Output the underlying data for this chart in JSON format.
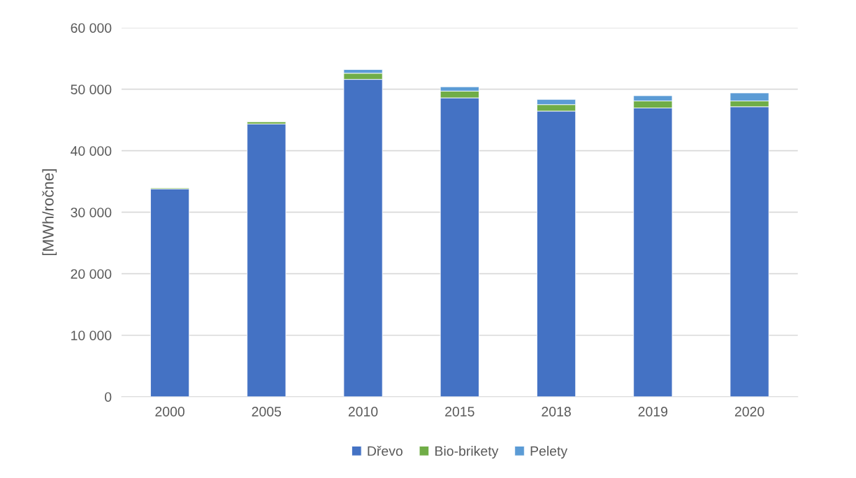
{
  "chart_data": {
    "type": "bar",
    "stacked": true,
    "ylabel": "[MWh/ročne]",
    "categories": [
      "2000",
      "2005",
      "2010",
      "2015",
      "2018",
      "2019",
      "2020"
    ],
    "series": [
      {
        "name": "Dřevo",
        "color": "#4472c4",
        "values": [
          33800,
          44350,
          51600,
          48600,
          46450,
          46950,
          47150
        ]
      },
      {
        "name": "Bio-brikety",
        "color": "#70ad47",
        "values": [
          150,
          350,
          1000,
          1100,
          1050,
          1150,
          950
        ]
      },
      {
        "name": "Pelety",
        "color": "#5b9bd5",
        "values": [
          null,
          null,
          600,
          700,
          850,
          850,
          1300
        ]
      }
    ],
    "ylim": [
      0,
      60000
    ],
    "yticks": [
      {
        "value": 0,
        "label": "0"
      },
      {
        "value": 10000,
        "label": "10 000"
      },
      {
        "value": 20000,
        "label": "20 000"
      },
      {
        "value": 30000,
        "label": "30 000"
      },
      {
        "value": 40000,
        "label": "40 000"
      },
      {
        "value": 50000,
        "label": "50 000"
      },
      {
        "value": 60000,
        "label": "60 000"
      }
    ],
    "grid": "y",
    "legend": "bottom"
  }
}
